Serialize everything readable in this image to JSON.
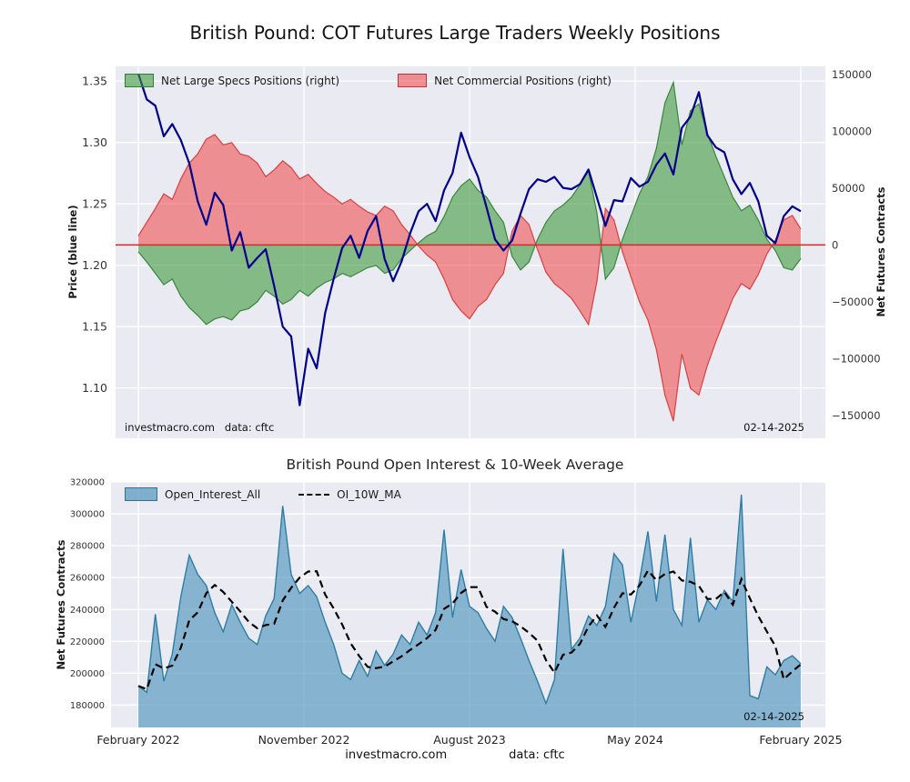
{
  "footer": {
    "source": "investmacro.com",
    "data_note": "data: cftc"
  },
  "chart_data": [
    {
      "type": "area",
      "title": "British Pound: COT Futures Large Traders Weekly Positions",
      "x_domain": [
        "February 2022",
        "February 2025"
      ],
      "ylabel_left": "Price (blue line)",
      "ylabel_right": "Net Futures Contracts",
      "ylim_left": [
        1.059,
        1.362
      ],
      "ylim_right": [
        -170000,
        157000
      ],
      "yticks_left": [
        1.1,
        1.15,
        1.2,
        1.25,
        1.3,
        1.35
      ],
      "yticks_right": [
        -150000,
        -100000,
        -50000,
        0,
        50000,
        100000,
        150000
      ],
      "grid": true,
      "legend_position": "upper left",
      "legend": [
        {
          "label": "Net Large Specs Positions (right)",
          "color": "#3d9a3d"
        },
        {
          "label": "Net Commercial Positions (right)",
          "color": "#ee4444"
        }
      ],
      "colors": {
        "plot_bg": "#eaeaf2",
        "grid": "#ffffff",
        "specs_fill": "#3d9a3d",
        "specs_edge": "#2e7d32",
        "commercial_fill": "#ee4444",
        "commercial_edge": "#d63333",
        "zero_line": "#cf2b2b",
        "price_line": "#00008b"
      },
      "annotations": {
        "source": "investmacro.com   data: cftc",
        "date": "02-14-2025"
      },
      "series": [
        {
          "name": "Net Large Specs Positions",
          "axis": "right",
          "style": "area",
          "values": [
            -6000,
            -15000,
            -25000,
            -35000,
            -30000,
            -45000,
            -55000,
            -62000,
            -70000,
            -65000,
            -63000,
            -66000,
            -58000,
            -56000,
            -50000,
            -40000,
            -45000,
            -52000,
            -48000,
            -40000,
            -45000,
            -38000,
            -33000,
            -30000,
            -25000,
            -28000,
            -24000,
            -20000,
            -18000,
            -25000,
            -22000,
            -12000,
            -5000,
            2000,
            8000,
            12000,
            25000,
            42000,
            52000,
            58000,
            48000,
            42000,
            30000,
            20000,
            -10000,
            -22000,
            -15000,
            5000,
            20000,
            30000,
            35000,
            42000,
            53000,
            65000,
            28000,
            -30000,
            -20000,
            5000,
            25000,
            45000,
            60000,
            85000,
            125000,
            143000,
            88000,
            118000,
            124000,
            98000,
            78000,
            60000,
            42000,
            30000,
            35000,
            22000,
            5000,
            -5000,
            -20000,
            -22000,
            -12000
          ]
        },
        {
          "name": "Net Commercial Positions",
          "axis": "right",
          "style": "area",
          "values": [
            8000,
            20000,
            32000,
            45000,
            40000,
            58000,
            72000,
            80000,
            93000,
            97000,
            88000,
            90000,
            80000,
            78000,
            72000,
            60000,
            66000,
            74000,
            68000,
            58000,
            62000,
            54000,
            47000,
            42000,
            36000,
            40000,
            34000,
            29000,
            26000,
            34000,
            30000,
            18000,
            9000,
            -1000,
            -9000,
            -15000,
            -30000,
            -48000,
            -58000,
            -65000,
            -54000,
            -48000,
            -35000,
            -25000,
            12000,
            26000,
            18000,
            -4000,
            -24000,
            -34000,
            -40000,
            -47000,
            -58000,
            -70000,
            -32000,
            32000,
            22000,
            -6000,
            -28000,
            -50000,
            -66000,
            -92000,
            -132000,
            -155000,
            -96000,
            -126000,
            -132000,
            -106000,
            -85000,
            -66000,
            -47000,
            -34000,
            -39000,
            -26000,
            -8000,
            4000,
            22000,
            26000,
            14000
          ]
        },
        {
          "name": "Price",
          "axis": "left",
          "style": "line",
          "values": [
            1.356,
            1.335,
            1.33,
            1.305,
            1.315,
            1.302,
            1.283,
            1.252,
            1.233,
            1.259,
            1.249,
            1.212,
            1.227,
            1.198,
            1.206,
            1.213,
            1.183,
            1.15,
            1.142,
            1.086,
            1.132,
            1.116,
            1.161,
            1.189,
            1.214,
            1.224,
            1.206,
            1.228,
            1.24,
            1.205,
            1.187,
            1.203,
            1.226,
            1.244,
            1.25,
            1.236,
            1.261,
            1.275,
            1.308,
            1.288,
            1.272,
            1.247,
            1.221,
            1.212,
            1.22,
            1.242,
            1.262,
            1.27,
            1.268,
            1.272,
            1.263,
            1.262,
            1.266,
            1.278,
            1.255,
            1.232,
            1.253,
            1.252,
            1.271,
            1.264,
            1.268,
            1.282,
            1.291,
            1.274,
            1.312,
            1.321,
            1.341,
            1.306,
            1.296,
            1.292,
            1.27,
            1.258,
            1.267,
            1.252,
            1.224,
            1.218,
            1.24,
            1.248,
            1.244
          ]
        }
      ]
    },
    {
      "type": "area",
      "title": "British Pound Open Interest & 10-Week Average",
      "ylabel": "Net Futures Contracts",
      "ylim": [
        166000,
        320000
      ],
      "yticks": [
        180000,
        200000,
        220000,
        240000,
        260000,
        280000,
        300000,
        320000
      ],
      "xticklabels": [
        "February 2022",
        "November 2022",
        "August 2023",
        "May 2024",
        "February 2025"
      ],
      "grid": true,
      "legend_position": "upper left",
      "legend": [
        {
          "label": "Open_Interest_All",
          "color": "#5b9bc0"
        },
        {
          "label": "OI_10W_MA",
          "color": "#000000",
          "style": "dashed"
        }
      ],
      "colors": {
        "plot_bg": "#eaeaf2",
        "grid": "#ffffff",
        "oi_fill": "#5b9bc0",
        "oi_edge": "#2e7da5",
        "ma_line": "#000000"
      },
      "annotations": {
        "date": "02-14-2025"
      },
      "series": [
        {
          "name": "Open_Interest_All",
          "style": "area",
          "values": [
            192000,
            188000,
            237000,
            195000,
            212000,
            248000,
            274000,
            262000,
            255000,
            238000,
            226000,
            243000,
            232000,
            222000,
            218000,
            236000,
            247000,
            305000,
            262000,
            250000,
            255000,
            248000,
            232000,
            218000,
            200000,
            196000,
            208000,
            198000,
            214000,
            205000,
            212000,
            224000,
            218000,
            232000,
            224000,
            238000,
            290000,
            235000,
            265000,
            242000,
            238000,
            228000,
            220000,
            242000,
            235000,
            222000,
            208000,
            195000,
            181000,
            196000,
            278000,
            215000,
            222000,
            236000,
            230000,
            242000,
            275000,
            268000,
            232000,
            258000,
            289000,
            245000,
            287000,
            240000,
            230000,
            285000,
            232000,
            246000,
            240000,
            252000,
            245000,
            312000,
            186000,
            184000,
            204000,
            199000,
            208000,
            211000,
            206000
          ]
        },
        {
          "name": "OI_10W_MA",
          "style": "dashed-line",
          "derived_from": "Open_Interest_All",
          "window_points": 5
        }
      ]
    }
  ]
}
